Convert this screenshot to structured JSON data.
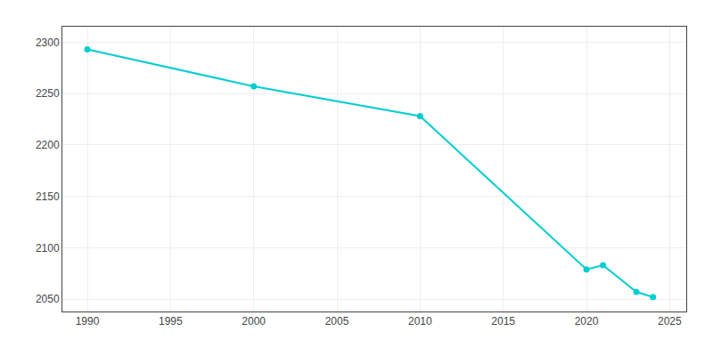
{
  "chart_data": {
    "type": "line",
    "x": [
      1990,
      2000,
      2010,
      2020,
      2021,
      2023,
      2024
    ],
    "values": [
      2293,
      2257,
      2228,
      2079,
      2083,
      2057,
      2052
    ],
    "color": "#00CDD0",
    "marker": "circle",
    "line_style": "solid",
    "xlim": [
      1988.5,
      2026
    ],
    "ylim": [
      2038,
      2315
    ],
    "xticks": [
      1990,
      1995,
      2000,
      2005,
      2010,
      2015,
      2020,
      2025
    ],
    "yticks": [
      2050,
      2100,
      2150,
      2200,
      2250,
      2300
    ],
    "grid": true
  }
}
